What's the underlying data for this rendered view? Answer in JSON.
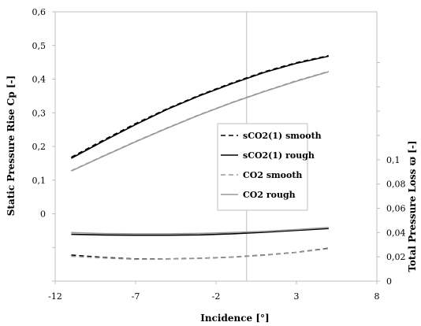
{
  "chart_data": {
    "type": "line",
    "xlabel": "Incidence [°]",
    "ylabel": "Static Pressure Rise Cp [-]",
    "y2label": "Total Pressure Loss ϖ [-]",
    "xlim": [
      -12,
      8
    ],
    "ylim": [
      -0.2,
      0.6
    ],
    "y2lim": [
      0,
      0.12
    ],
    "xticks": [
      "-12",
      "-7",
      "-2",
      "3",
      "8"
    ],
    "yticks": [
      "0",
      "0,1",
      "0,2",
      "0,3",
      "0,4",
      "0,5",
      "0,6"
    ],
    "y2ticks": [
      "0",
      "0,02",
      "0,04",
      "0,06",
      "0,08",
      "0,1"
    ],
    "grid": {
      "vertical_at_x": [
        -0.1
      ],
      "horizontal": false
    },
    "legend": {
      "placement": "center-right",
      "entries": [
        "sCO2(1) smooth",
        "sCO2(1) rough",
        "CO2 smooth",
        "CO2 rough"
      ]
    },
    "series": [
      {
        "name": "sCO2(1) smooth",
        "axis": "left",
        "color": "#000000",
        "dash": "dashed",
        "x": [
          -11,
          -9,
          -7,
          -5,
          -3,
          -1,
          1,
          3,
          5
        ],
        "y": [
          0.168,
          0.219,
          0.268,
          0.313,
          0.353,
          0.389,
          0.422,
          0.449,
          0.47
        ]
      },
      {
        "name": "sCO2(1) rough",
        "axis": "left",
        "color": "#000000",
        "dash": "solid",
        "x": [
          -11,
          -9,
          -7,
          -5,
          -3,
          -1,
          1,
          3,
          5
        ],
        "y": [
          0.165,
          0.216,
          0.265,
          0.311,
          0.351,
          0.387,
          0.42,
          0.447,
          0.468
        ]
      },
      {
        "name": "CO2 smooth",
        "axis": "left",
        "color": "#999999",
        "dash": "dashed",
        "x": [
          -11,
          -9,
          -7,
          -5,
          -3,
          -1,
          1,
          3,
          5
        ],
        "y": [
          0.128,
          0.172,
          0.215,
          0.256,
          0.295,
          0.331,
          0.364,
          0.395,
          0.423
        ]
      },
      {
        "name": "CO2 rough",
        "axis": "left",
        "color": "#999999",
        "dash": "solid",
        "x": [
          -11,
          -9,
          -7,
          -5,
          -3,
          -1,
          1,
          3,
          5
        ],
        "y": [
          0.127,
          0.171,
          0.214,
          0.255,
          0.294,
          0.33,
          0.363,
          0.394,
          0.422
        ]
      },
      {
        "name": "sCO2(1) smooth",
        "axis": "right",
        "color": "#000000",
        "dash": "dashed",
        "x": [
          -11,
          -9,
          -7,
          -5,
          -3,
          -1,
          1,
          3,
          5
        ],
        "y": [
          0.0215,
          0.0195,
          0.0183,
          0.0183,
          0.0188,
          0.0198,
          0.0215,
          0.0237,
          0.0271
        ]
      },
      {
        "name": "sCO2(1) rough",
        "axis": "right",
        "color": "#000000",
        "dash": "solid",
        "x": [
          -11,
          -9,
          -7,
          -5,
          -3,
          -1,
          1,
          3,
          5
        ],
        "y": [
          0.0385,
          0.038,
          0.0378,
          0.0378,
          0.0381,
          0.039,
          0.0402,
          0.0418,
          0.0433
        ]
      },
      {
        "name": "CO2 smooth",
        "axis": "right",
        "color": "#999999",
        "dash": "dashed",
        "x": [
          -11,
          -9,
          -7,
          -5,
          -3,
          -1,
          1,
          3,
          5
        ],
        "y": [
          0.0205,
          0.019,
          0.018,
          0.0182,
          0.0187,
          0.0197,
          0.0213,
          0.0236,
          0.0268
        ]
      },
      {
        "name": "CO2 rough",
        "axis": "right",
        "color": "#999999",
        "dash": "solid",
        "x": [
          -11,
          -9,
          -7,
          -5,
          -3,
          -1,
          1,
          3,
          5
        ],
        "y": [
          0.04,
          0.0392,
          0.039,
          0.039,
          0.0393,
          0.04,
          0.041,
          0.0425,
          0.0442
        ]
      }
    ]
  }
}
